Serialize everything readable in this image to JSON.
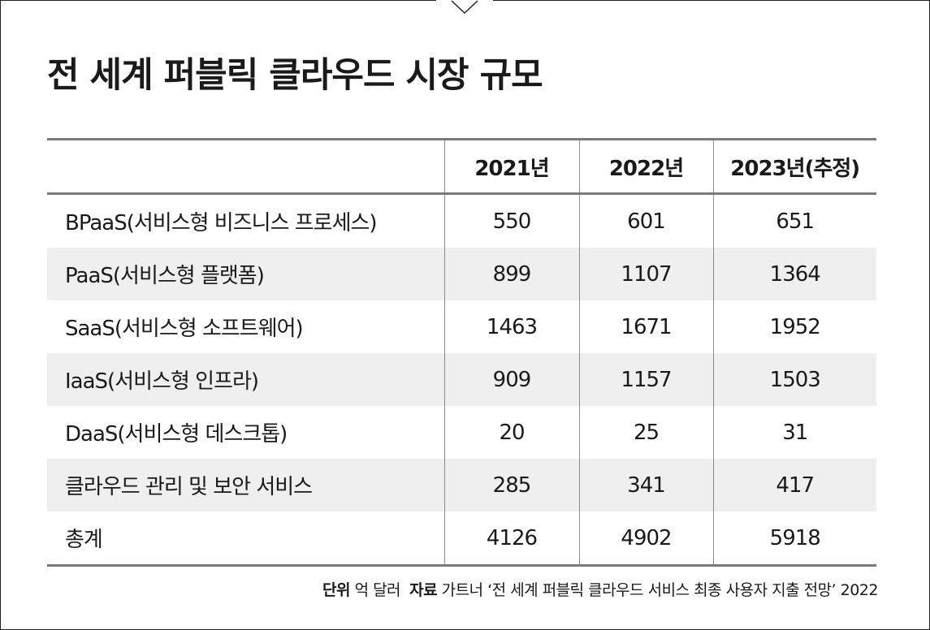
{
  "title": "전 세계 퍼블릭 클라우드 시장 규모",
  "chart_data": {
    "type": "table",
    "columns": [
      "",
      "2021년",
      "2022년",
      "2023년(추정)"
    ],
    "rows": [
      {
        "category": "BPaaS(서비스형 비즈니스 프로세스)",
        "values": [
          "550",
          "601",
          "651"
        ]
      },
      {
        "category": "PaaS(서비스형 플랫폼)",
        "values": [
          "899",
          "1107",
          "1364"
        ]
      },
      {
        "category": "SaaS(서비스형 소프트웨어)",
        "values": [
          "1463",
          "1671",
          "1952"
        ]
      },
      {
        "category": "IaaS(서비스형 인프라)",
        "values": [
          "909",
          "1157",
          "1503"
        ]
      },
      {
        "category": "DaaS(서비스형 데스크톱)",
        "values": [
          "20",
          "25",
          "31"
        ]
      },
      {
        "category": "클라우드 관리 및 보안 서비스",
        "values": [
          "285",
          "341",
          "417"
        ]
      },
      {
        "category": "총계",
        "values": [
          "4126",
          "4902",
          "5918"
        ]
      }
    ]
  },
  "footer": {
    "unit_label": "단위",
    "unit_value": "억 달러",
    "source_label": "자료",
    "source_value": "가트너 ‘전 세계 퍼블릭 클라우드 서비스 최종 사용자 지출 전망’ 2022"
  },
  "colors": {
    "rule": "#7a7a7a",
    "stripe": "#efefef",
    "text": "#1a1a1a"
  }
}
